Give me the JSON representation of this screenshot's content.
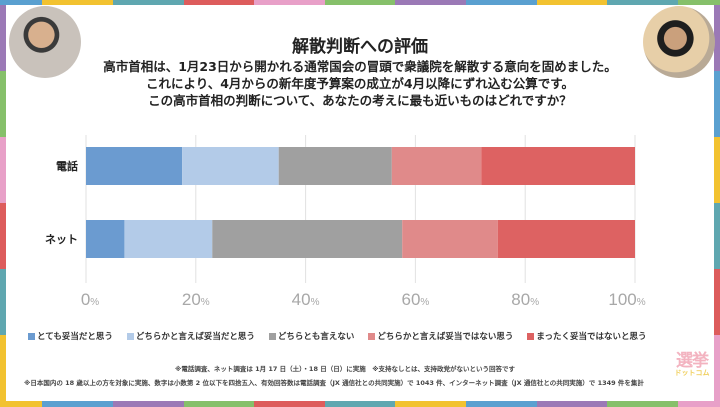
{
  "frame": {
    "top": [
      "#5aa0d0",
      "#f2c230",
      "#5fa7b0",
      "#dd5c5c",
      "#e8a0c8",
      "#86c06a",
      "#9b79b6",
      "#5aa0d0",
      "#f2c230",
      "#5fa7b0",
      "#86c06a"
    ],
    "bottom": [
      "#f2c230",
      "#5aa0d0",
      "#9b79b6",
      "#86c06a",
      "#dd5c5c",
      "#5fa7b0",
      "#f2c230",
      "#5aa0d0",
      "#9b79b6",
      "#86c06a",
      "#e8a0c8"
    ],
    "left": [
      "#9b79b6",
      "#86c06a",
      "#e8a0c8",
      "#dd5c5c",
      "#5fa7b0",
      "#f2c230"
    ],
    "right": [
      "#9b79b6",
      "#5aa0d0",
      "#f2c230",
      "#5fa7b0",
      "#dd5c5c",
      "#e8a0c8"
    ]
  },
  "header": {
    "title": "解散判断への評価",
    "question_lines": [
      "高市首相は、1月23日から開かれる通常国会の冒頭で衆議院を解散する意向を固めました。",
      "これにより、4月からの新年度予算案の成立が4月以降にずれ込む公算です。",
      "この高市首相の判断について、あなたの考えに最も近いものはどれですか？"
    ]
  },
  "chart_data": {
    "type": "bar",
    "orientation": "horizontal",
    "stacked": true,
    "title": "解散判断への評価",
    "categories": [
      "電話",
      "ネット"
    ],
    "series": [
      {
        "name": "とても妥当だと思う",
        "color": "#6b9bd0",
        "values": [
          17.5,
          7.0
        ]
      },
      {
        "name": "どちらかと言えば妥当だと思う",
        "color": "#b3cbe8",
        "values": [
          17.6,
          16.0
        ]
      },
      {
        "name": "どちらとも言えない",
        "color": "#a0a0a0",
        "values": [
          20.6,
          34.6
        ]
      },
      {
        "name": "どちらかと言えば妥当ではない思う",
        "color": "#e08a8a",
        "values": [
          16.3,
          17.4
        ]
      },
      {
        "name": "まったく妥当ではないと思う",
        "color": "#dd6262",
        "values": [
          28.0,
          25.0
        ]
      }
    ],
    "xlim": [
      0,
      100
    ],
    "xticks": [
      0,
      20,
      40,
      60,
      80,
      100
    ],
    "xtick_suffix": "%",
    "grid": true,
    "legend_position": "bottom"
  },
  "notes": {
    "line1": "※電話調査、ネット調査は 1月 17 日（土）・18 日（日）に実施　※支持なしとは、支持政党がないという回答です",
    "line2": "※日本国内の 18 歳以上の方を対象に実施、数字は小数第 2 位以下を四捨五入、有効回答数は電話調査（JX 通信社との共同実施）で 1043 件、インターネット調査（JX 通信社との共同実施）で 1349 件を集計"
  },
  "logo": {
    "main": "選挙",
    "sub": "ドットコム"
  }
}
